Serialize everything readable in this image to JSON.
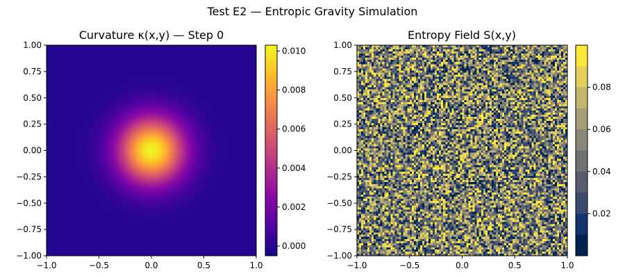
{
  "figure": {
    "suptitle": "Test E2 — Entropic Gravity Simulation"
  },
  "chart_data": [
    {
      "type": "heatmap",
      "title": "Curvature κ(x,y) — Step 0",
      "xlabel": "",
      "ylabel": "",
      "xlim": [
        -1.0,
        1.0
      ],
      "ylim": [
        -1.0,
        1.0
      ],
      "xticks": [
        "−1.0",
        "−0.5",
        "0.0",
        "0.5",
        "1.0"
      ],
      "yticks": [
        "1.00",
        "0.75",
        "0.50",
        "0.25",
        "0.00",
        "−0.25",
        "−0.50",
        "−0.75",
        "−1.00"
      ],
      "field": "gaussian peak centered at (0,0), width ~0.35",
      "value_range": [
        -0.0005,
        0.0103
      ],
      "colormap": "plasma",
      "colorbar_ticks": [
        "0.000",
        "0.002",
        "0.004",
        "0.006",
        "0.008",
        "0.010"
      ],
      "colorbar_tick_values": [
        0.0,
        0.002,
        0.004,
        0.006,
        0.008,
        0.01
      ],
      "colors": [
        "#0d0887",
        "#5302a3",
        "#8b0aa5",
        "#b83289",
        "#db5c68",
        "#f48849",
        "#febd2a",
        "#f0f921"
      ]
    },
    {
      "type": "heatmap",
      "title": "Entropy Field S(x,y)",
      "xlabel": "",
      "ylabel": "",
      "xlim": [
        -1.0,
        1.0
      ],
      "ylim": [
        -1.0,
        1.0
      ],
      "xticks": [
        "−1.0",
        "−0.5",
        "0.0",
        "0.5",
        "1.0"
      ],
      "yticks": [
        "1.00",
        "0.75",
        "0.50",
        "0.25",
        "0.00",
        "−0.25",
        "−0.50",
        "−0.75",
        "−1.00"
      ],
      "field": "uniform random noise",
      "value_range": [
        0.0,
        0.1
      ],
      "colormap": "cividis (discrete levels)",
      "colorbar_ticks": [
        "0.02",
        "0.04",
        "0.06",
        "0.08"
      ],
      "colorbar_tick_values": [
        0.02,
        0.04,
        0.06,
        0.08
      ],
      "colors": [
        "#00224e",
        "#123570",
        "#3b496c",
        "#575d6d",
        "#707173",
        "#8a8779",
        "#a69d75",
        "#c4b56c",
        "#e4cf5b",
        "#fee838"
      ]
    }
  ]
}
